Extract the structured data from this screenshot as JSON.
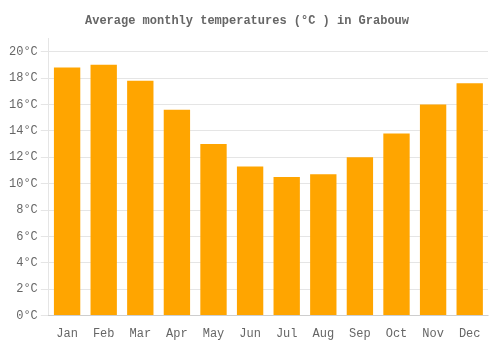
{
  "chart_data": {
    "type": "bar",
    "title": "Average monthly temperatures (°C ) in Grabouw",
    "categories": [
      "Jan",
      "Feb",
      "Mar",
      "Apr",
      "May",
      "Jun",
      "Jul",
      "Aug",
      "Sep",
      "Oct",
      "Nov",
      "Dec"
    ],
    "values": [
      18.8,
      19.0,
      17.8,
      15.6,
      13.0,
      11.3,
      10.5,
      10.7,
      12.0,
      13.8,
      16.0,
      17.6
    ],
    "color": "#FFA500",
    "ylim": [
      0,
      21
    ],
    "yticks": [
      {
        "value": 0,
        "label": "0°C"
      },
      {
        "value": 2,
        "label": "2°C"
      },
      {
        "value": 4,
        "label": "4°C"
      },
      {
        "value": 6,
        "label": "6°C"
      },
      {
        "value": 8,
        "label": "8°C"
      },
      {
        "value": 10,
        "label": "10°C"
      },
      {
        "value": 12,
        "label": "12°C"
      },
      {
        "value": 14,
        "label": "14°C"
      },
      {
        "value": 16,
        "label": "16°C"
      },
      {
        "value": 18,
        "label": "18°C"
      },
      {
        "value": 20,
        "label": "20°C"
      }
    ],
    "grid": true
  }
}
